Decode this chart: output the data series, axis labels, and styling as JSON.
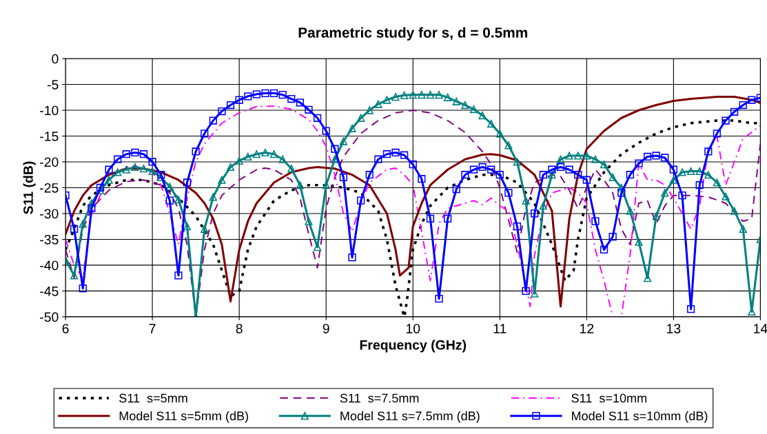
{
  "chart_data": {
    "type": "line",
    "title": "Parametric study for s, d = 0.5mm",
    "xlabel": "Frequency (GHz)",
    "ylabel": "S11 (dB)",
    "xlim": [
      6,
      14
    ],
    "xticks": [
      6,
      7,
      8,
      9,
      10,
      11,
      12,
      13,
      14
    ],
    "ylim": [
      -50,
      0
    ],
    "yticks": [
      -50,
      -45,
      -40,
      -35,
      -30,
      -25,
      -20,
      -15,
      -10,
      -5,
      0
    ],
    "grid": true,
    "legend": "bottom",
    "series": [
      {
        "name": "S11  s=5mm",
        "color": "#000000",
        "line_style": "dotted",
        "marker": "none",
        "x": [
          6.0,
          6.1,
          6.2,
          6.3,
          6.5,
          6.7,
          6.9,
          7.1,
          7.3,
          7.5,
          7.7,
          7.9,
          8.0,
          8.1,
          8.2,
          8.4,
          8.6,
          8.8,
          9.0,
          9.2,
          9.4,
          9.6,
          9.7,
          9.8,
          9.9,
          9.93,
          10.0,
          10.1,
          10.2,
          10.4,
          10.6,
          10.8,
          11.0,
          11.2,
          11.4,
          11.6,
          11.75,
          11.85,
          11.9,
          12.0,
          12.2,
          12.4,
          12.6,
          12.8,
          13.0,
          13.2,
          13.5,
          13.7,
          13.9,
          14.0
        ],
        "values": [
          -37,
          -33,
          -28.5,
          -26.5,
          -24.5,
          -23.5,
          -23.5,
          -24.5,
          -27,
          -30.5,
          -36,
          -46,
          -45,
          -37,
          -32.5,
          -27.5,
          -25.5,
          -24.5,
          -24.5,
          -25,
          -26,
          -29.5,
          -35,
          -44,
          -50,
          -47,
          -37,
          -32,
          -28.5,
          -25,
          -23.5,
          -22.5,
          -22.5,
          -24,
          -28,
          -36,
          -43,
          -41,
          -35,
          -27,
          -22,
          -18.5,
          -16.3,
          -14.5,
          -13.3,
          -12.5,
          -12,
          -12,
          -12.5,
          -12.5
        ]
      },
      {
        "name": "S11  s=7.5mm",
        "color": "#800080",
        "line_style": "dashed",
        "marker": "none",
        "x": [
          6.0,
          6.1,
          6.2,
          6.3,
          6.5,
          6.7,
          6.9,
          7.1,
          7.2,
          7.3,
          7.4,
          7.5,
          7.6,
          7.7,
          7.8,
          8.0,
          8.2,
          8.3,
          8.4,
          8.6,
          8.7,
          8.8,
          8.9,
          9.0,
          9.1,
          9.2,
          9.4,
          9.6,
          9.8,
          10.0,
          10.2,
          10.4,
          10.6,
          10.8,
          10.9,
          11.0,
          11.2,
          11.3,
          11.4,
          11.6,
          11.7,
          11.8,
          11.9,
          12.0,
          12.1,
          12.2,
          12.3,
          12.4,
          12.5,
          12.6,
          12.7,
          12.8,
          12.9,
          13.0,
          13.2,
          13.4,
          13.6,
          13.8,
          13.9,
          14.0
        ],
        "values": [
          -37,
          -42.5,
          -33,
          -29,
          -25.5,
          -23.8,
          -23.5,
          -24.5,
          -26,
          -29,
          -36,
          -50,
          -37,
          -30,
          -26.5,
          -23.5,
          -21.5,
          -21.2,
          -21.5,
          -23.5,
          -27,
          -34,
          -40.5,
          -29,
          -23,
          -19,
          -14.5,
          -12,
          -10.5,
          -10,
          -10.5,
          -12,
          -14.3,
          -18,
          -20.5,
          -25,
          -37.5,
          -29,
          -24,
          -22.5,
          -22.8,
          -25.5,
          -29,
          -25,
          -21.5,
          -23.5,
          -26,
          -33,
          -36,
          -28,
          -27.5,
          -32,
          -28.5,
          -26.5,
          -26.5,
          -26.8,
          -28,
          -31.5,
          -31,
          -16.5
        ]
      },
      {
        "name": "S11  s=10mm",
        "color": "#ff00ff",
        "line_style": "dashdot",
        "marker": "none",
        "x": [
          6.0,
          6.1,
          6.2,
          6.3,
          6.5,
          6.7,
          6.8,
          7.0,
          7.1,
          7.2,
          7.3,
          7.4,
          7.5,
          7.6,
          7.8,
          8.0,
          8.2,
          8.4,
          8.6,
          8.8,
          8.9,
          9.0,
          9.1,
          9.2,
          9.3,
          9.4,
          9.5,
          9.7,
          9.8,
          9.9,
          10.0,
          10.1,
          10.2,
          10.3,
          10.4,
          10.5,
          10.7,
          10.8,
          10.9,
          11.0,
          11.1,
          11.2,
          11.35,
          11.4,
          11.5,
          11.6,
          11.8,
          11.9,
          12.0,
          12.1,
          12.2,
          12.3,
          12.4,
          12.5,
          12.6,
          12.7,
          12.8,
          12.9,
          13.0,
          13.1,
          13.2,
          13.3,
          13.4,
          13.5,
          13.6,
          13.7,
          13.8,
          14.0
        ],
        "values": [
          -35,
          -40,
          -42.5,
          -30,
          -23,
          -21,
          -20.8,
          -22,
          -24.5,
          -30,
          -36,
          -27,
          -20,
          -16.5,
          -12.5,
          -10.5,
          -9.3,
          -9.2,
          -9.8,
          -11.8,
          -14,
          -17,
          -22.5,
          -30,
          -33.5,
          -28,
          -24,
          -21.5,
          -21.2,
          -22.5,
          -24.5,
          -33.5,
          -43,
          -32,
          -29,
          -28.5,
          -27.5,
          -28.3,
          -27,
          -28.5,
          -29.5,
          -36,
          -48,
          -38,
          -30,
          -26,
          -25,
          -26,
          -28,
          -37,
          -43,
          -50,
          -50,
          -38,
          -20.3,
          -23.5,
          -23.5,
          -24.5,
          -27,
          -30,
          -33,
          -28.5,
          -17.5,
          -15,
          -24.5,
          -20,
          -15.5,
          -13
        ]
      },
      {
        "name": "Model S11 s=5mm (dB)",
        "color": "#800000",
        "line_style": "solid",
        "marker": "none",
        "x": [
          6.0,
          6.1,
          6.2,
          6.3,
          6.5,
          6.7,
          6.9,
          7.1,
          7.3,
          7.5,
          7.6,
          7.7,
          7.8,
          7.9,
          8.0,
          8.1,
          8.2,
          8.4,
          8.6,
          8.8,
          8.9,
          9.1,
          9.3,
          9.5,
          9.7,
          9.8,
          9.85,
          9.95,
          10.0,
          10.1,
          10.2,
          10.4,
          10.6,
          10.8,
          10.9,
          11.0,
          11.2,
          11.4,
          11.6,
          11.7,
          11.8,
          11.9,
          12.0,
          12.2,
          12.4,
          12.6,
          12.8,
          13.0,
          13.2,
          13.5,
          13.7,
          13.9,
          14.0
        ],
        "values": [
          -34,
          -29.5,
          -26.5,
          -24.5,
          -22.5,
          -21.3,
          -21.3,
          -22,
          -23.5,
          -26,
          -28,
          -31,
          -36,
          -47,
          -37,
          -31.5,
          -28,
          -24,
          -22,
          -21.2,
          -21,
          -21.3,
          -22.5,
          -24.5,
          -30,
          -37,
          -42,
          -40.5,
          -32.5,
          -28,
          -24.5,
          -21.5,
          -19.5,
          -18.6,
          -18.5,
          -18.7,
          -19.7,
          -22.5,
          -29.5,
          -48,
          -31,
          -22.5,
          -17.5,
          -14,
          -11.5,
          -10,
          -9,
          -8.2,
          -7.8,
          -7.4,
          -7.4,
          -8,
          -8.6
        ]
      },
      {
        "name": "Model S11 s=7.5mm (dB)",
        "color": "#008080",
        "line_style": "solid",
        "marker": "triangle",
        "x": [
          6.0,
          6.1,
          6.2,
          6.3,
          6.4,
          6.5,
          6.6,
          6.7,
          6.8,
          6.9,
          7.0,
          7.1,
          7.2,
          7.3,
          7.4,
          7.5,
          7.6,
          7.7,
          7.8,
          7.9,
          8.0,
          8.1,
          8.2,
          8.3,
          8.4,
          8.5,
          8.6,
          8.7,
          8.8,
          8.9,
          9.0,
          9.1,
          9.2,
          9.3,
          9.4,
          9.5,
          9.6,
          9.7,
          9.8,
          9.9,
          10.0,
          10.1,
          10.2,
          10.3,
          10.4,
          10.5,
          10.6,
          10.7,
          10.8,
          10.9,
          11.0,
          11.1,
          11.2,
          11.3,
          11.4,
          11.5,
          11.6,
          11.7,
          11.8,
          11.9,
          12.0,
          12.1,
          12.2,
          12.3,
          12.4,
          12.5,
          12.6,
          12.7,
          12.8,
          12.9,
          13.0,
          13.1,
          13.2,
          13.3,
          13.4,
          13.5,
          13.6,
          13.7,
          13.8,
          13.9,
          14.0
        ],
        "values": [
          -39,
          -42,
          -32,
          -28,
          -25.5,
          -23.5,
          -22,
          -21.5,
          -21,
          -21.3,
          -21.8,
          -23,
          -24.8,
          -27.3,
          -32.5,
          -50,
          -33,
          -26.8,
          -23.5,
          -21,
          -19.8,
          -19,
          -18.5,
          -18.2,
          -18.5,
          -19.5,
          -21.3,
          -24.5,
          -31.5,
          -36.5,
          -24.5,
          -19.5,
          -16,
          -13.5,
          -11.5,
          -10,
          -8.8,
          -8,
          -7.4,
          -7.1,
          -7,
          -7,
          -7,
          -7,
          -7.5,
          -8.3,
          -9,
          -9.8,
          -11,
          -12.6,
          -14.5,
          -16.8,
          -20,
          -27.5,
          -45.5,
          -28.5,
          -22.5,
          -19.5,
          -18.8,
          -18.8,
          -18.8,
          -19.5,
          -20.5,
          -23,
          -25,
          -29.5,
          -35.5,
          -42.5,
          -30.5,
          -26,
          -23.5,
          -22,
          -21.8,
          -21.8,
          -22.5,
          -24,
          -26.7,
          -29.5,
          -33,
          -49,
          -35
        ]
      },
      {
        "name": "Model S11 s=10mm (dB)",
        "color": "#0000ff",
        "line_style": "solid",
        "marker": "square",
        "x": [
          6.0,
          6.1,
          6.2,
          6.3,
          6.4,
          6.5,
          6.6,
          6.7,
          6.8,
          6.9,
          7.0,
          7.1,
          7.2,
          7.3,
          7.4,
          7.5,
          7.6,
          7.7,
          7.8,
          7.9,
          8.0,
          8.1,
          8.2,
          8.3,
          8.4,
          8.5,
          8.6,
          8.7,
          8.8,
          8.9,
          9.0,
          9.1,
          9.2,
          9.3,
          9.4,
          9.5,
          9.6,
          9.7,
          9.8,
          9.9,
          10.0,
          10.1,
          10.2,
          10.3,
          10.4,
          10.5,
          10.6,
          10.7,
          10.8,
          10.9,
          11.0,
          11.1,
          11.2,
          11.3,
          11.4,
          11.5,
          11.6,
          11.7,
          11.8,
          11.9,
          12.0,
          12.1,
          12.2,
          12.3,
          12.4,
          12.5,
          12.6,
          12.7,
          12.8,
          12.9,
          13.0,
          13.1,
          13.2,
          13.3,
          13.4,
          13.5,
          13.6,
          13.7,
          13.8,
          13.9,
          14.0
        ],
        "values": [
          -26.5,
          -33,
          -44.5,
          -29,
          -25,
          -21.5,
          -19.5,
          -18.5,
          -18.2,
          -18.5,
          -20,
          -22.5,
          -27.5,
          -42,
          -24,
          -18,
          -14.5,
          -12,
          -10.2,
          -9,
          -8,
          -7.3,
          -6.9,
          -6.7,
          -6.7,
          -7,
          -7.8,
          -8.5,
          -9.9,
          -11.5,
          -14,
          -17.5,
          -23,
          -38.5,
          -27.5,
          -22.5,
          -19.5,
          -18.5,
          -18.2,
          -18.7,
          -20.5,
          -23.3,
          -31,
          -46.5,
          -31,
          -25.3,
          -22.5,
          -21.5,
          -21,
          -21.5,
          -22.5,
          -26,
          -32.5,
          -45,
          -30,
          -22.5,
          -21.5,
          -21,
          -21.5,
          -22.5,
          -23.5,
          -31.5,
          -37,
          -34.5,
          -26,
          -22.5,
          -20.3,
          -19,
          -18.8,
          -19.2,
          -21.5,
          -26.5,
          -48.5,
          -24.5,
          -18,
          -14.5,
          -12,
          -10.3,
          -9,
          -8,
          -7.6
        ]
      }
    ]
  }
}
